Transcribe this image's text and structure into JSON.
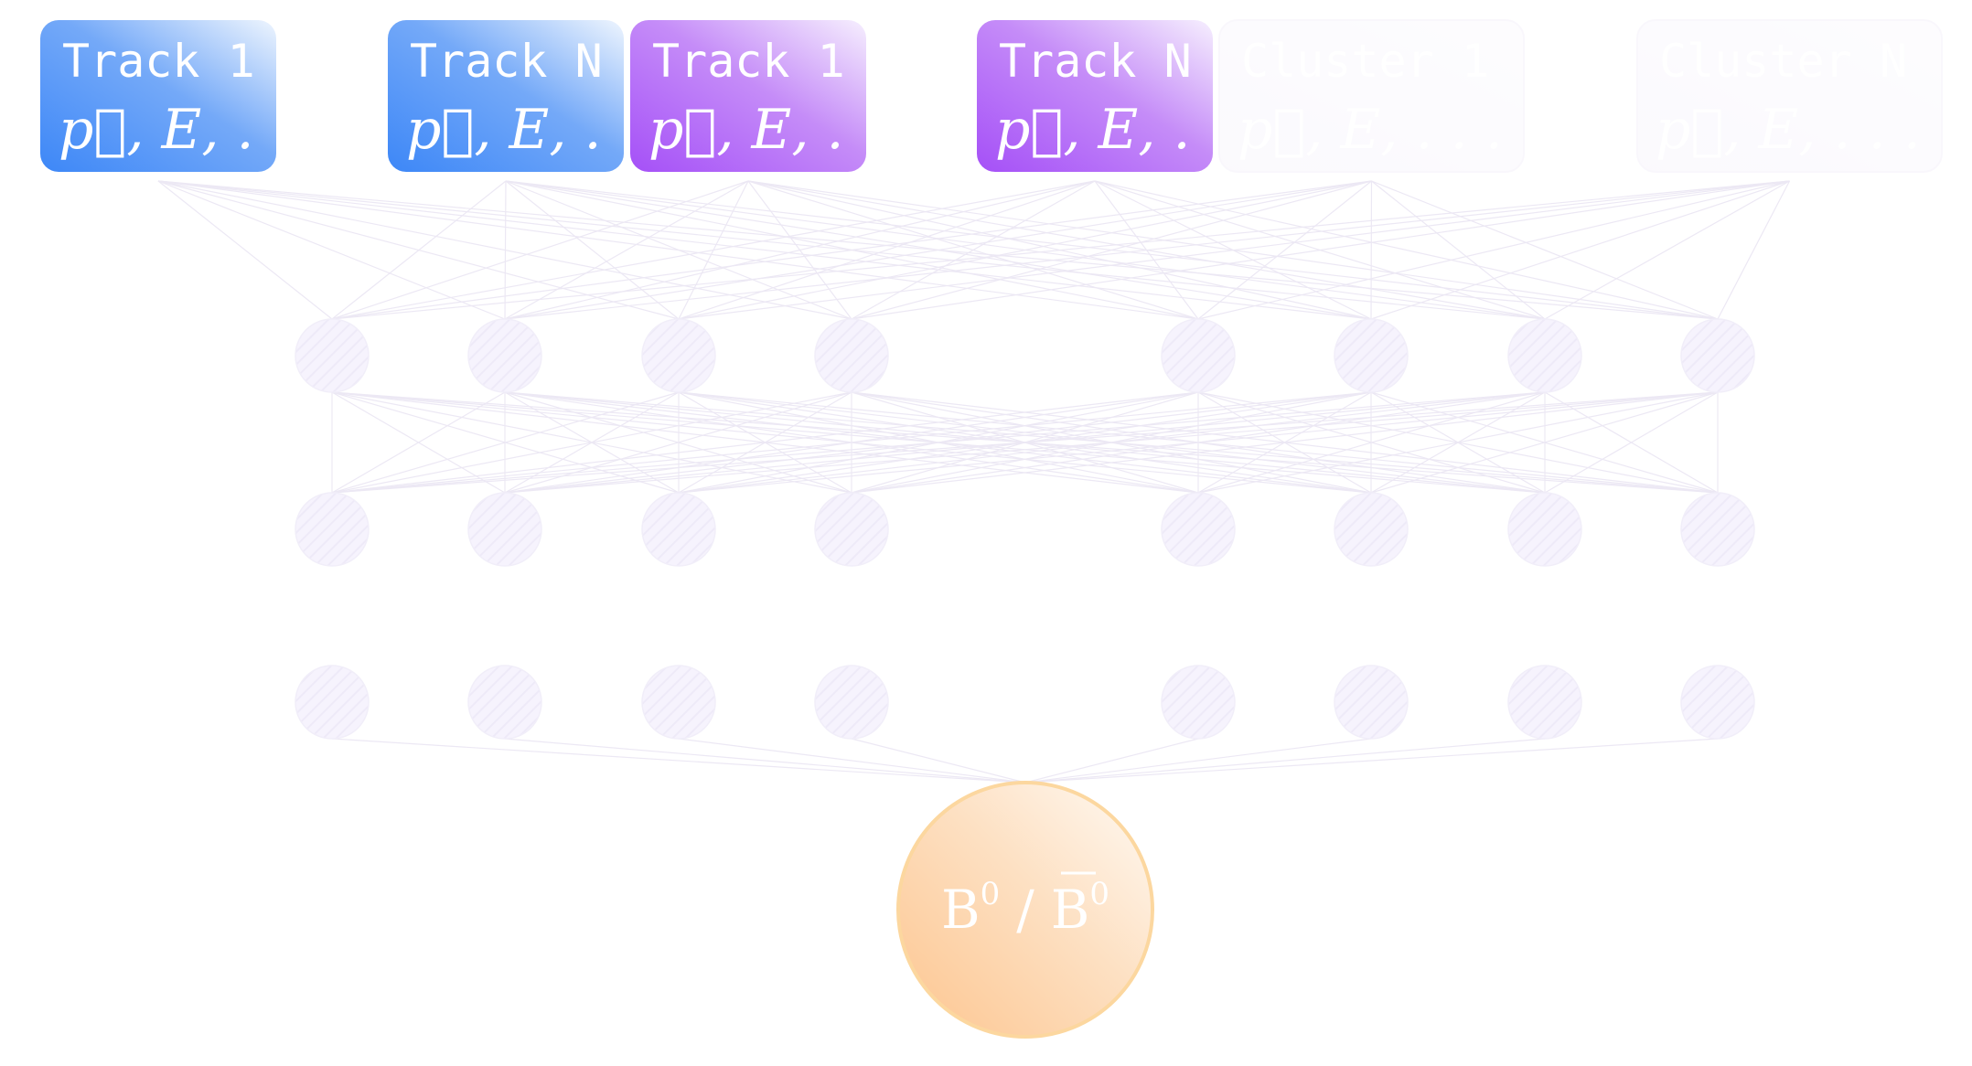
{
  "inputs": [
    {
      "title": "Track 1",
      "features": "p⃗, E, . . .",
      "group": "tracks_a",
      "faded": false
    },
    {
      "title": "Track N",
      "features": "p⃗, E, . . .",
      "group": "tracks_a",
      "faded": false
    },
    {
      "title": "Track 1",
      "features": "p⃗, E, . . .",
      "group": "tracks_b",
      "faded": false
    },
    {
      "title": "Track N",
      "features": "p⃗, E, . . .",
      "group": "tracks_b",
      "faded": false
    },
    {
      "title": "Cluster 1",
      "features": "p⃗, E, . . .",
      "group": "clusters",
      "faded": true
    },
    {
      "title": "Cluster N",
      "features": "p⃗, E, . . .",
      "group": "clusters",
      "faded": true
    }
  ],
  "hidden_layers": [
    {
      "nodes": 8
    },
    {
      "nodes": 8
    },
    {
      "nodes": 8
    }
  ],
  "output": {
    "label_left": "B",
    "label_left_sup": "0",
    "separator": "/",
    "label_right": "B",
    "label_right_sup": "0"
  },
  "colors": {
    "tracks_a": "#3d87f7",
    "tracks_b": "#a550f7",
    "clusters": "#f3eefc",
    "output": "#fdd2a4",
    "output_border": "#fcd79f"
  }
}
